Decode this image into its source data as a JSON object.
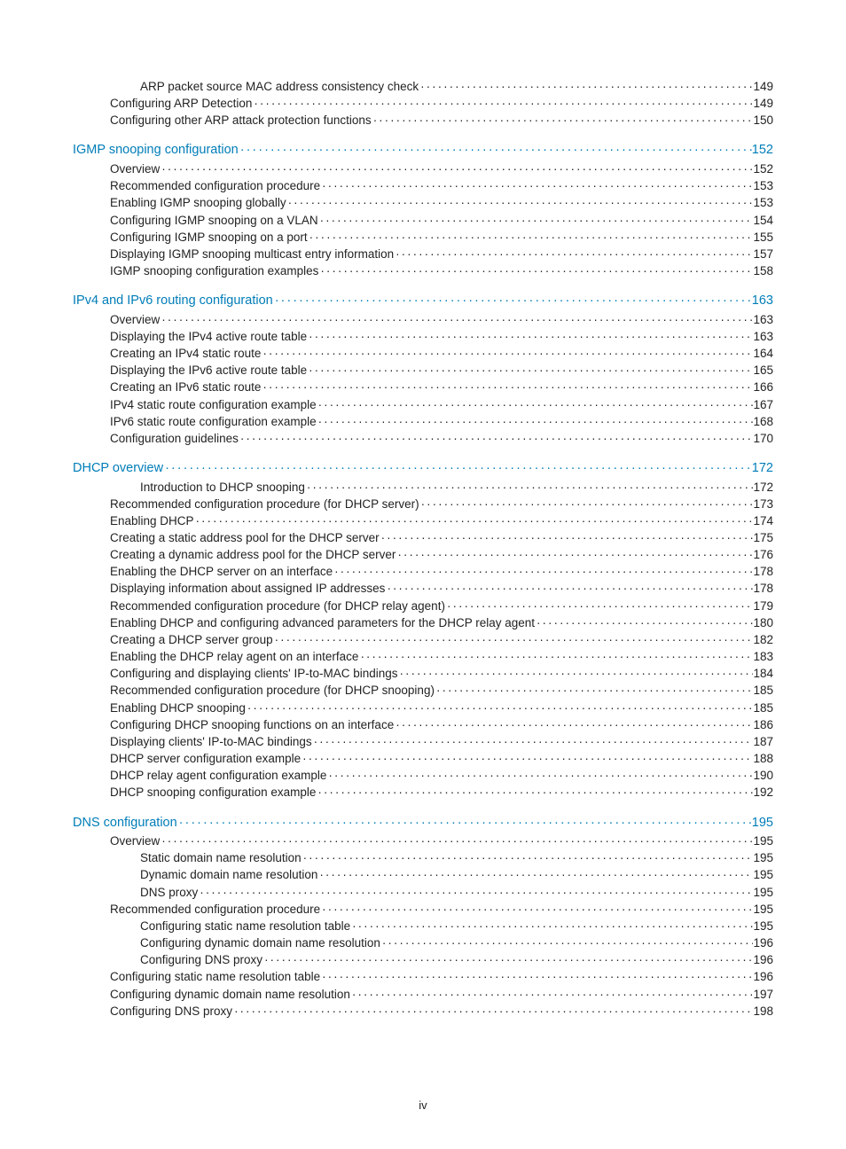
{
  "footer": "iv",
  "colors": {
    "heading": "#007db8",
    "text": "#222222",
    "background": "#ffffff"
  },
  "entries": [
    {
      "level": 2,
      "title": "ARP packet source MAC address consistency check",
      "page": "149"
    },
    {
      "level": 1,
      "title": "Configuring ARP Detection",
      "page": "149"
    },
    {
      "level": 1,
      "title": "Configuring other ARP attack protection functions",
      "page": "150"
    },
    {
      "level": 0,
      "title": "IGMP snooping configuration",
      "page": "152",
      "head": true
    },
    {
      "level": 1,
      "title": "Overview",
      "page": "152"
    },
    {
      "level": 1,
      "title": "Recommended configuration procedure",
      "page": "153"
    },
    {
      "level": 1,
      "title": "Enabling IGMP snooping globally",
      "page": "153"
    },
    {
      "level": 1,
      "title": "Configuring IGMP snooping on a VLAN",
      "page": "154"
    },
    {
      "level": 1,
      "title": "Configuring IGMP snooping on a port",
      "page": "155"
    },
    {
      "level": 1,
      "title": "Displaying IGMP snooping multicast entry information",
      "page": "157"
    },
    {
      "level": 1,
      "title": "IGMP snooping configuration examples",
      "page": "158"
    },
    {
      "level": 0,
      "title": "IPv4 and IPv6 routing configuration",
      "page": "163",
      "head": true
    },
    {
      "level": 1,
      "title": "Overview",
      "page": "163"
    },
    {
      "level": 1,
      "title": "Displaying the IPv4 active route table",
      "page": "163"
    },
    {
      "level": 1,
      "title": "Creating an IPv4 static route",
      "page": "164"
    },
    {
      "level": 1,
      "title": "Displaying the IPv6 active route table",
      "page": "165"
    },
    {
      "level": 1,
      "title": "Creating an IPv6 static route",
      "page": "166"
    },
    {
      "level": 1,
      "title": "IPv4 static route configuration example",
      "page": "167"
    },
    {
      "level": 1,
      "title": "IPv6 static route configuration example",
      "page": "168"
    },
    {
      "level": 1,
      "title": "Configuration guidelines",
      "page": "170"
    },
    {
      "level": 0,
      "title": "DHCP overview",
      "page": "172",
      "head": true
    },
    {
      "level": 2,
      "title": "Introduction to DHCP snooping",
      "page": "172"
    },
    {
      "level": 1,
      "title": "Recommended configuration procedure (for DHCP server)",
      "page": "173"
    },
    {
      "level": 1,
      "title": "Enabling DHCP",
      "page": "174"
    },
    {
      "level": 1,
      "title": "Creating a static address pool for the DHCP server",
      "page": "175"
    },
    {
      "level": 1,
      "title": "Creating a dynamic address pool for the DHCP server",
      "page": "176"
    },
    {
      "level": 1,
      "title": "Enabling the DHCP server on an interface",
      "page": "178"
    },
    {
      "level": 1,
      "title": "Displaying information about assigned IP addresses",
      "page": "178"
    },
    {
      "level": 1,
      "title": "Recommended configuration procedure (for DHCP relay agent)",
      "page": "179"
    },
    {
      "level": 1,
      "title": "Enabling DHCP and configuring advanced parameters for the DHCP relay agent",
      "page": "180"
    },
    {
      "level": 1,
      "title": "Creating a DHCP server group",
      "page": "182"
    },
    {
      "level": 1,
      "title": "Enabling the DHCP relay agent on an interface",
      "page": "183"
    },
    {
      "level": 1,
      "title": "Configuring and displaying clients' IP-to-MAC bindings",
      "page": "184"
    },
    {
      "level": 1,
      "title": "Recommended configuration procedure (for DHCP snooping)",
      "page": "185"
    },
    {
      "level": 1,
      "title": "Enabling DHCP snooping",
      "page": "185"
    },
    {
      "level": 1,
      "title": "Configuring DHCP snooping functions on an interface",
      "page": "186"
    },
    {
      "level": 1,
      "title": "Displaying clients' IP-to-MAC bindings",
      "page": "187"
    },
    {
      "level": 1,
      "title": "DHCP server configuration example",
      "page": "188"
    },
    {
      "level": 1,
      "title": "DHCP relay agent configuration example",
      "page": "190"
    },
    {
      "level": 1,
      "title": "DHCP snooping configuration example",
      "page": "192"
    },
    {
      "level": 0,
      "title": "DNS configuration",
      "page": "195",
      "head": true
    },
    {
      "level": 1,
      "title": "Overview",
      "page": "195"
    },
    {
      "level": 2,
      "title": "Static domain name resolution",
      "page": "195"
    },
    {
      "level": 2,
      "title": "Dynamic domain name resolution",
      "page": "195"
    },
    {
      "level": 2,
      "title": "DNS proxy",
      "page": "195"
    },
    {
      "level": 1,
      "title": "Recommended configuration procedure",
      "page": "195"
    },
    {
      "level": 2,
      "title": "Configuring static name resolution table",
      "page": "195"
    },
    {
      "level": 2,
      "title": "Configuring dynamic domain name resolution",
      "page": "196"
    },
    {
      "level": 2,
      "title": "Configuring DNS proxy",
      "page": "196"
    },
    {
      "level": 1,
      "title": "Configuring static name resolution table",
      "page": "196"
    },
    {
      "level": 1,
      "title": "Configuring dynamic domain name resolution",
      "page": "197"
    },
    {
      "level": 1,
      "title": "Configuring DNS proxy",
      "page": "198"
    }
  ]
}
